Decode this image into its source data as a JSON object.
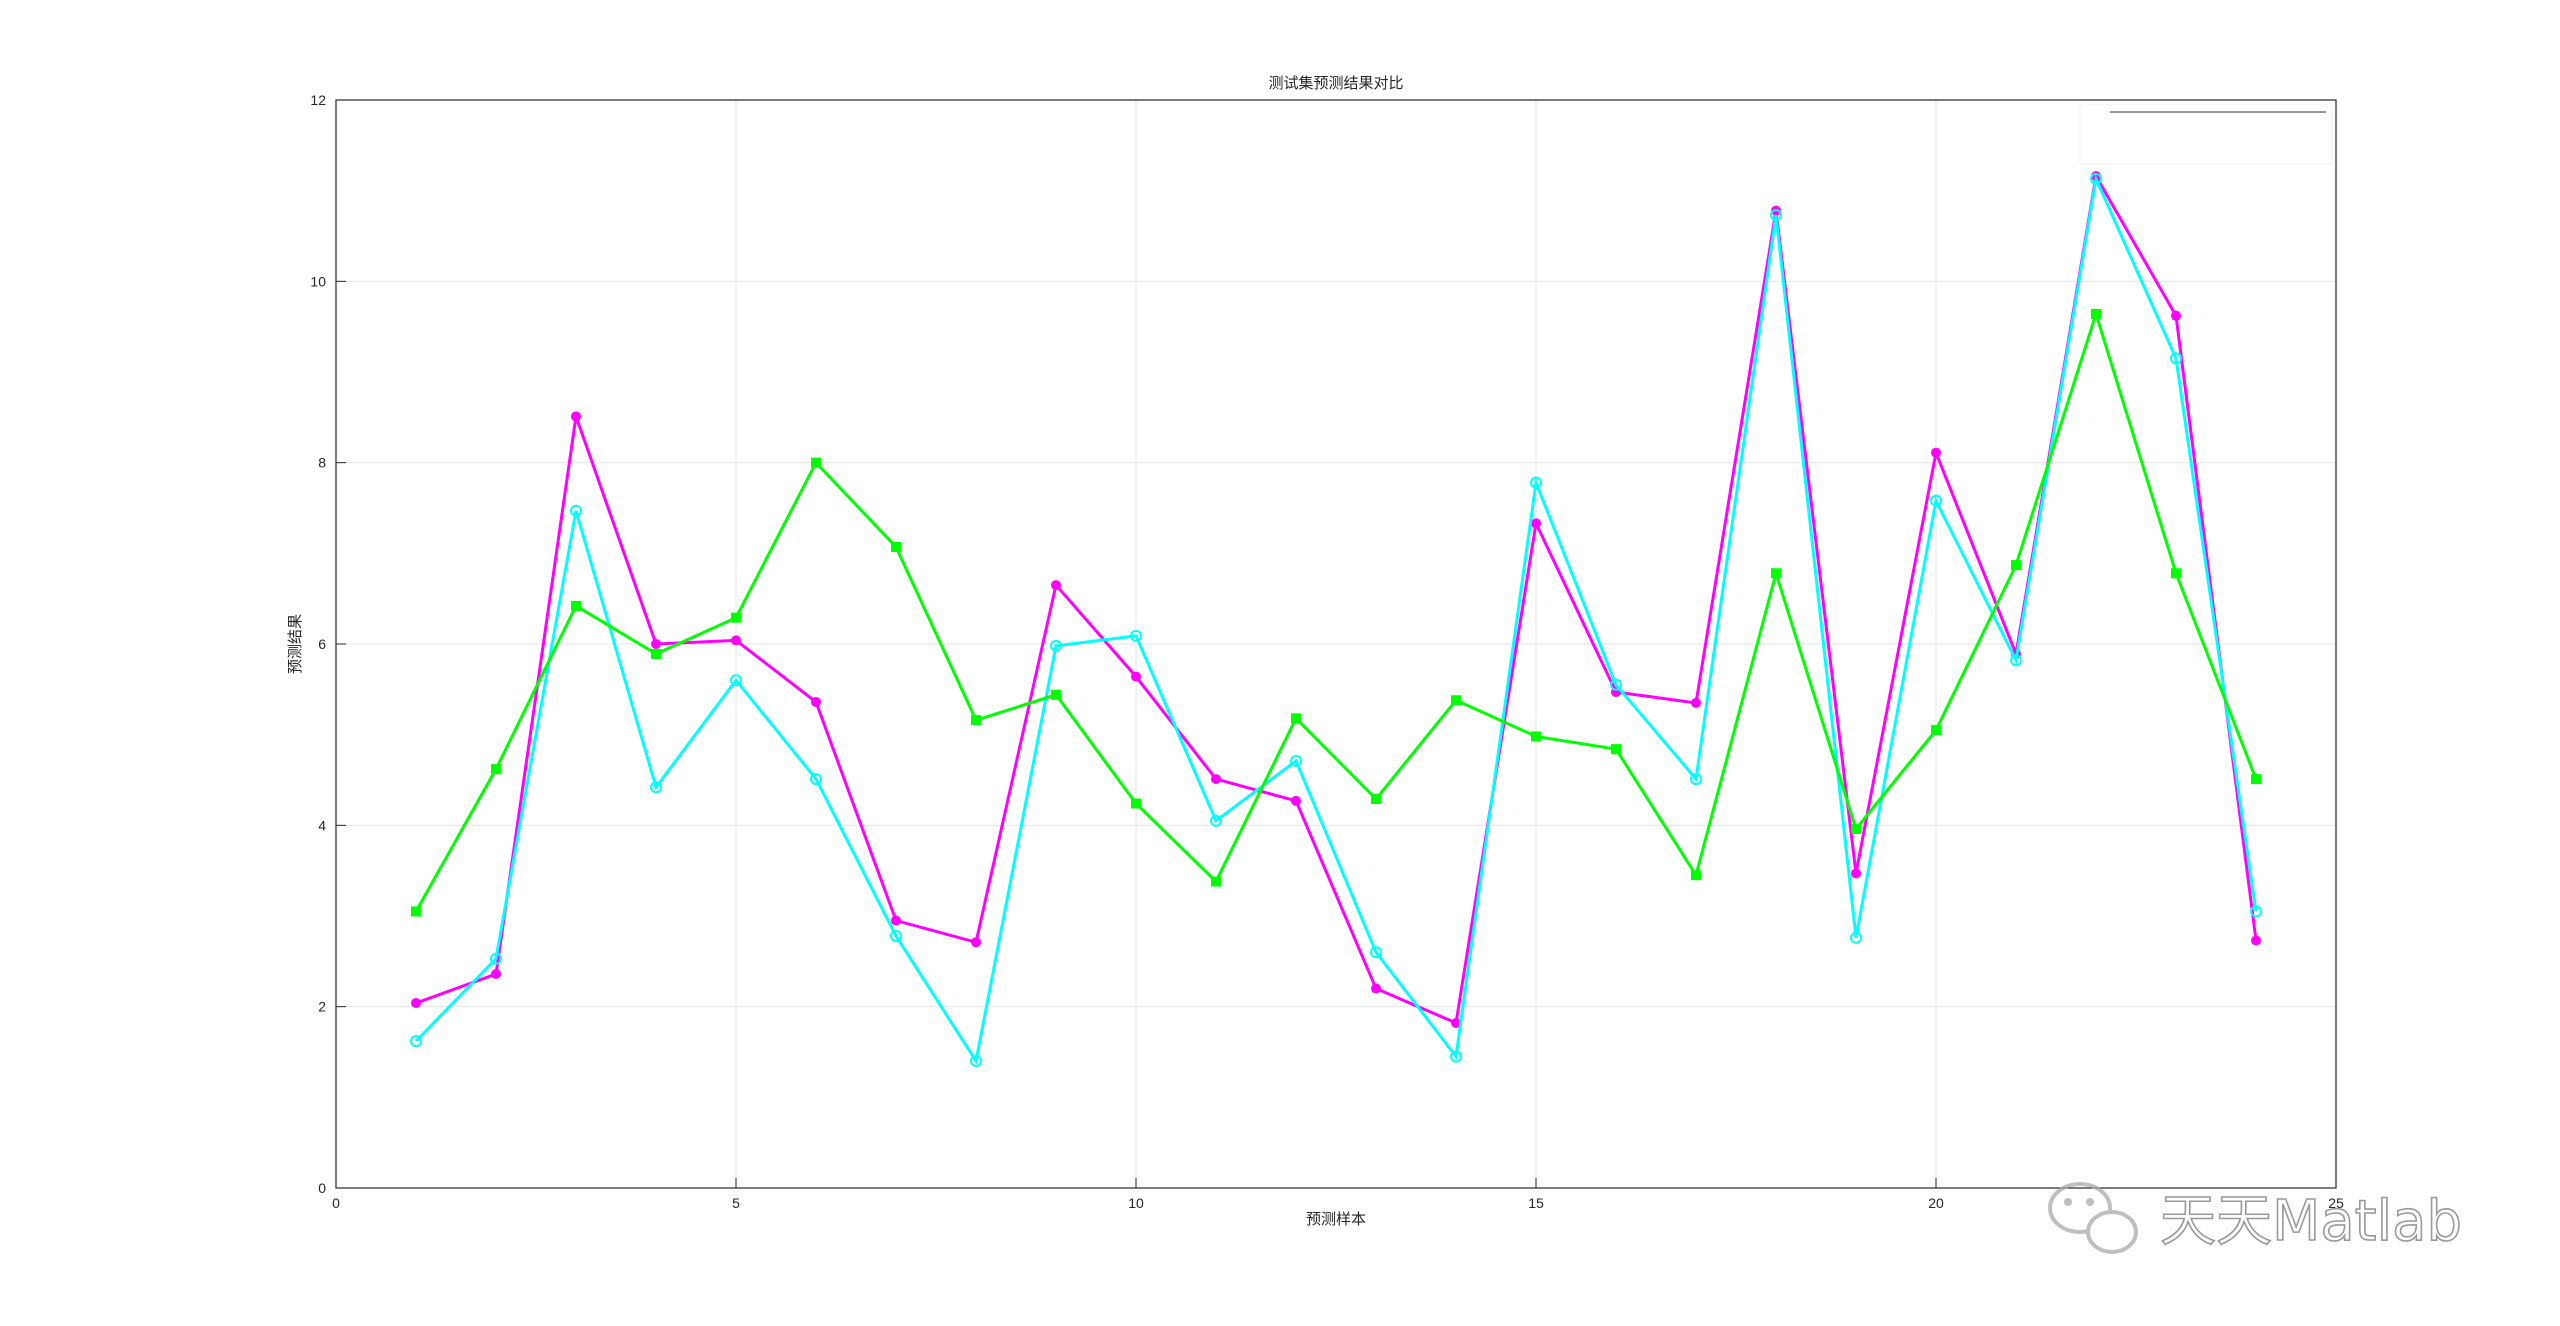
{
  "chart_data": {
    "type": "line",
    "title": "测试集预测结果对比",
    "x_label": "预测样本",
    "y_label": "预测结果",
    "x": [
      1,
      2,
      3,
      4,
      5,
      6,
      7,
      8,
      9,
      10,
      11,
      12,
      13,
      14,
      15,
      16,
      17,
      18,
      19,
      20,
      21,
      22,
      23,
      24
    ],
    "series": [
      {
        "color": "#ff00ff",
        "marker": "dot",
        "values": [
          2.04,
          2.36,
          8.51,
          6.0,
          6.04,
          5.36,
          2.95,
          2.71,
          6.65,
          5.64,
          4.51,
          4.27,
          2.2,
          1.82,
          7.33,
          5.47,
          5.35,
          10.78,
          3.47,
          8.11,
          5.89,
          11.16,
          9.62,
          2.73
        ]
      },
      {
        "color": "#00ffff",
        "marker": "circle",
        "values": [
          1.62,
          2.53,
          7.47,
          4.42,
          5.6,
          4.51,
          2.78,
          1.4,
          5.98,
          6.09,
          4.05,
          4.71,
          2.6,
          1.45,
          7.78,
          5.55,
          4.51,
          10.73,
          2.76,
          7.58,
          5.82,
          11.13,
          9.15,
          3.05
        ]
      },
      {
        "color": "#00ff00",
        "marker": "square",
        "values": [
          3.05,
          4.62,
          6.42,
          5.89,
          6.29,
          8.0,
          7.07,
          5.16,
          5.44,
          4.24,
          3.38,
          5.18,
          4.29,
          5.38,
          4.98,
          4.84,
          3.45,
          6.78,
          3.96,
          5.05,
          6.87,
          9.64,
          6.78,
          4.51
        ]
      }
    ],
    "xlim": [
      0,
      25
    ],
    "xticks": [
      0,
      5,
      10,
      15,
      20,
      25
    ],
    "ylim": [
      0,
      12
    ],
    "yticks": [
      0,
      2,
      4,
      6,
      8,
      10,
      12
    ],
    "grid": true,
    "watermark": "天天Matlab"
  }
}
